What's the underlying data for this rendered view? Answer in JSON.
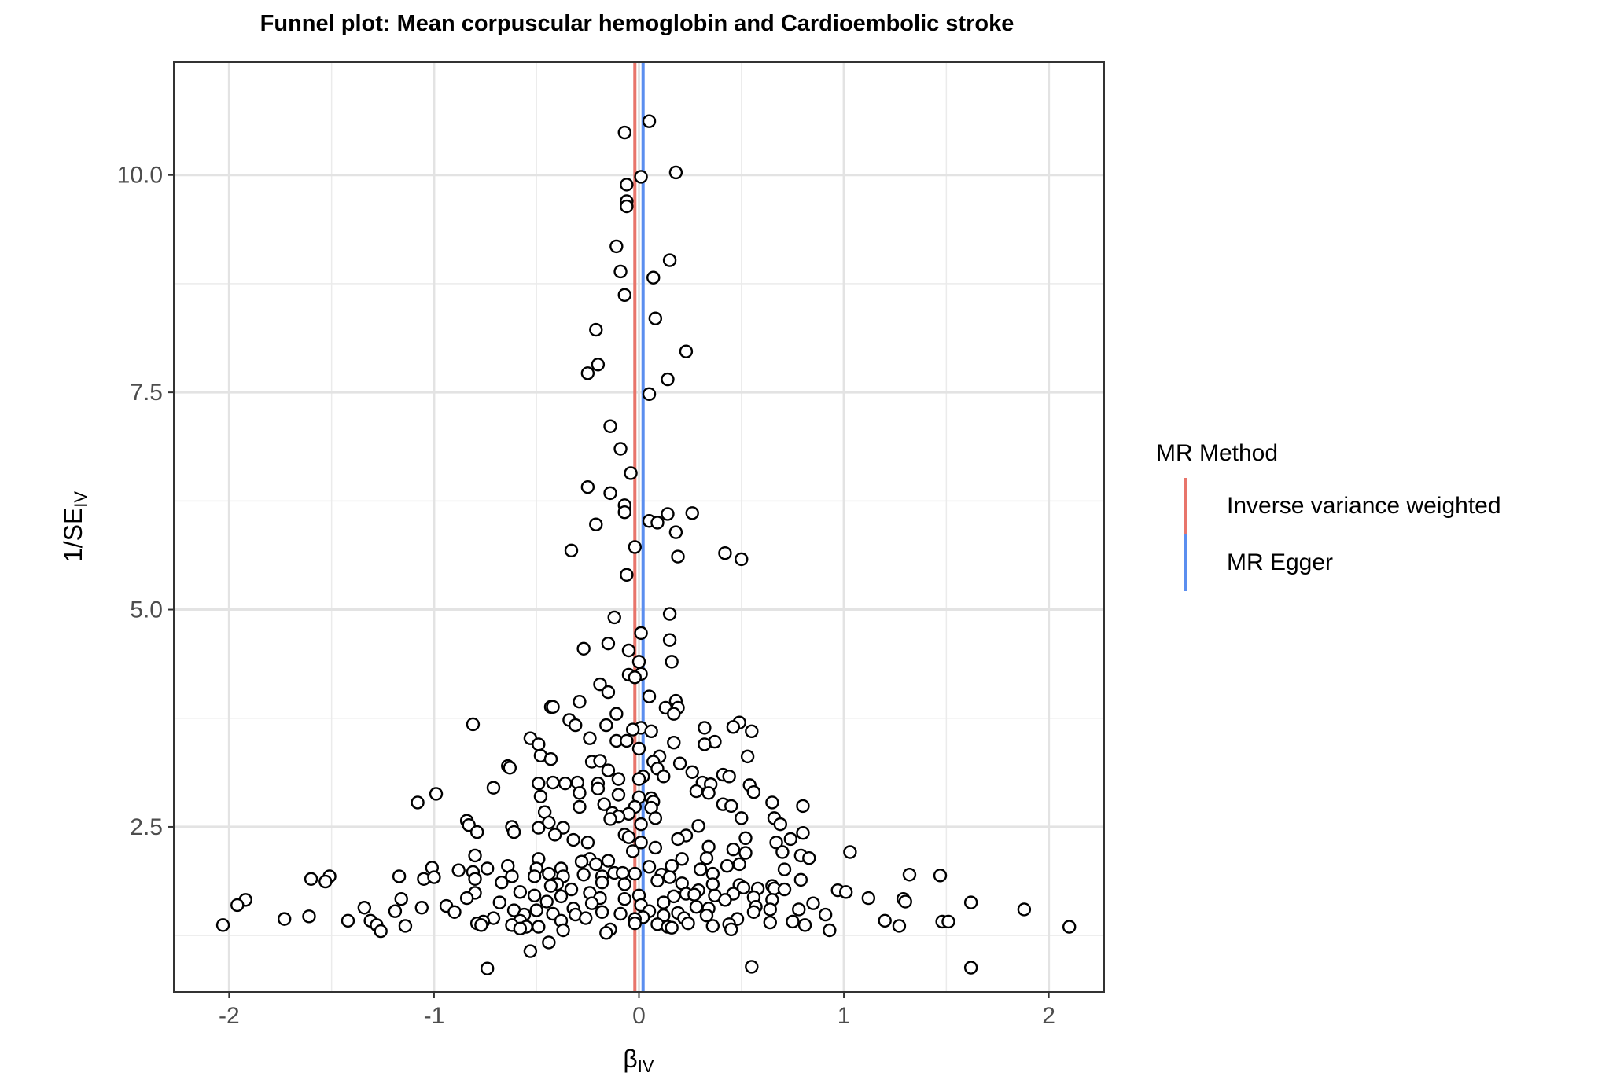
{
  "chart_data": {
    "type": "scatter",
    "title": "Funnel plot: Mean corpuscular hemoglobin and Cardioembolic stroke",
    "xlabel": "β",
    "xlabel_sub": "IV",
    "ylabel": "1/SE",
    "ylabel_sub": "IV",
    "xlim": [
      -2.27,
      2.27
    ],
    "ylim": [
      0.6,
      11.3
    ],
    "x_ticks": [
      -2,
      -1,
      0,
      1,
      2
    ],
    "x_tick_labels": [
      "-2",
      "-1",
      "0",
      "1",
      "2"
    ],
    "y_ticks": [
      2.5,
      5.0,
      7.5,
      10.0
    ],
    "y_tick_labels": [
      "2.5",
      "5.0",
      "7.5",
      "10.0"
    ],
    "grid": true,
    "legend_position": "right",
    "legend": {
      "title": "MR Method",
      "entries": [
        {
          "label": "Inverse variance weighted",
          "color": "#E8756B"
        },
        {
          "label": "MR Egger",
          "color": "#5B8EEF"
        }
      ]
    },
    "vlines": [
      {
        "name": "Inverse variance weighted",
        "x": -0.02,
        "color": "#E8756B"
      },
      {
        "name": "MR Egger",
        "x": 0.02,
        "color": "#5B8EEF"
      }
    ],
    "point_style": {
      "fill": "#ffffff",
      "stroke": "#000000"
    },
    "points": [
      [
        0.05,
        10.62
      ],
      [
        -0.07,
        10.49
      ],
      [
        0.18,
        10.03
      ],
      [
        0.01,
        9.98
      ],
      [
        -0.06,
        9.89
      ],
      [
        -0.06,
        9.7
      ],
      [
        -0.06,
        9.64
      ],
      [
        -0.11,
        9.18
      ],
      [
        0.15,
        9.02
      ],
      [
        -0.09,
        8.89
      ],
      [
        0.07,
        8.82
      ],
      [
        -0.07,
        8.62
      ],
      [
        0.08,
        8.35
      ],
      [
        -0.21,
        8.22
      ],
      [
        0.23,
        7.97
      ],
      [
        -0.2,
        7.82
      ],
      [
        -0.25,
        7.72
      ],
      [
        0.14,
        7.65
      ],
      [
        0.05,
        7.48
      ],
      [
        -0.14,
        7.11
      ],
      [
        -0.09,
        6.85
      ],
      [
        -0.04,
        6.57
      ],
      [
        -0.25,
        6.41
      ],
      [
        -0.14,
        6.34
      ],
      [
        -0.07,
        6.2
      ],
      [
        -0.07,
        6.12
      ],
      [
        0.26,
        6.11
      ],
      [
        0.14,
        6.1
      ],
      [
        0.05,
        6.02
      ],
      [
        0.09,
        6.0
      ],
      [
        -0.21,
        5.98
      ],
      [
        0.18,
        5.89
      ],
      [
        -0.02,
        5.72
      ],
      [
        -0.33,
        5.68
      ],
      [
        0.42,
        5.65
      ],
      [
        0.19,
        5.61
      ],
      [
        0.5,
        5.58
      ],
      [
        -0.06,
        5.4
      ],
      [
        0.15,
        4.95
      ],
      [
        -0.12,
        4.91
      ],
      [
        0.01,
        4.73
      ],
      [
        0.15,
        4.65
      ],
      [
        -0.15,
        4.61
      ],
      [
        -0.27,
        4.55
      ],
      [
        -0.05,
        4.53
      ],
      [
        0.0,
        4.4
      ],
      [
        0.16,
        4.4
      ],
      [
        -0.05,
        4.25
      ],
      [
        0.01,
        4.26
      ],
      [
        -0.02,
        4.22
      ],
      [
        -0.19,
        4.14
      ],
      [
        -0.15,
        4.05
      ],
      [
        0.05,
        4.0
      ],
      [
        -0.29,
        3.94
      ],
      [
        0.18,
        3.95
      ],
      [
        -0.43,
        3.88
      ],
      [
        -0.42,
        3.88
      ],
      [
        0.13,
        3.87
      ],
      [
        0.19,
        3.87
      ],
      [
        -0.11,
        3.8
      ],
      [
        0.17,
        3.8
      ],
      [
        -0.34,
        3.73
      ],
      [
        0.49,
        3.7
      ],
      [
        -0.81,
        3.68
      ],
      [
        -0.31,
        3.67
      ],
      [
        -0.16,
        3.67
      ],
      [
        0.46,
        3.65
      ],
      [
        0.01,
        3.64
      ],
      [
        -0.03,
        3.62
      ],
      [
        0.32,
        3.64
      ],
      [
        0.06,
        3.6
      ],
      [
        0.55,
        3.6
      ],
      [
        -0.53,
        3.52
      ],
      [
        -0.24,
        3.52
      ],
      [
        -0.11,
        3.49
      ],
      [
        -0.06,
        3.49
      ],
      [
        0.17,
        3.47
      ],
      [
        0.37,
        3.48
      ],
      [
        0.32,
        3.45
      ],
      [
        -0.49,
        3.45
      ],
      [
        0.0,
        3.4
      ],
      [
        0.1,
        3.31
      ],
      [
        -0.48,
        3.32
      ],
      [
        0.53,
        3.31
      ],
      [
        -0.43,
        3.28
      ],
      [
        -0.23,
        3.25
      ],
      [
        -0.19,
        3.26
      ],
      [
        0.07,
        3.25
      ],
      [
        0.2,
        3.23
      ],
      [
        -0.64,
        3.2
      ],
      [
        -0.63,
        3.18
      ],
      [
        0.09,
        3.17
      ],
      [
        -0.15,
        3.15
      ],
      [
        0.26,
        3.13
      ],
      [
        0.41,
        3.1
      ],
      [
        0.12,
        3.08
      ],
      [
        0.44,
        3.08
      ],
      [
        -0.1,
        3.05
      ],
      [
        0.02,
        3.08
      ],
      [
        0.0,
        3.05
      ],
      [
        -0.42,
        3.01
      ],
      [
        -0.49,
        3.0
      ],
      [
        -0.36,
        3.0
      ],
      [
        -0.2,
        3.0
      ],
      [
        -0.3,
        3.01
      ],
      [
        0.31,
        3.01
      ],
      [
        0.35,
        2.99
      ],
      [
        0.54,
        2.98
      ],
      [
        -0.71,
        2.95
      ],
      [
        -0.2,
        2.94
      ],
      [
        0.28,
        2.91
      ],
      [
        0.56,
        2.9
      ],
      [
        0.34,
        2.89
      ],
      [
        -0.99,
        2.88
      ],
      [
        -0.29,
        2.89
      ],
      [
        -0.1,
        2.87
      ],
      [
        -0.48,
        2.85
      ],
      [
        0.0,
        2.84
      ],
      [
        0.06,
        2.83
      ],
      [
        0.07,
        2.79
      ],
      [
        -1.08,
        2.78
      ],
      [
        0.65,
        2.78
      ],
      [
        0.41,
        2.76
      ],
      [
        -0.17,
        2.76
      ],
      [
        0.45,
        2.74
      ],
      [
        0.8,
        2.74
      ],
      [
        -0.29,
        2.73
      ],
      [
        -0.02,
        2.73
      ],
      [
        0.06,
        2.72
      ],
      [
        -0.46,
        2.67
      ],
      [
        -0.13,
        2.66
      ],
      [
        -0.05,
        2.65
      ],
      [
        -0.1,
        2.62
      ],
      [
        0.08,
        2.6
      ],
      [
        0.5,
        2.6
      ],
      [
        0.66,
        2.6
      ],
      [
        -0.84,
        2.57
      ],
      [
        -0.44,
        2.55
      ],
      [
        -0.14,
        2.59
      ],
      [
        0.01,
        2.53
      ],
      [
        0.69,
        2.53
      ],
      [
        0.29,
        2.51
      ],
      [
        -0.62,
        2.5
      ],
      [
        -0.49,
        2.49
      ],
      [
        -0.83,
        2.52
      ],
      [
        -0.37,
        2.49
      ],
      [
        -0.61,
        2.44
      ],
      [
        -0.79,
        2.44
      ],
      [
        -0.07,
        2.41
      ],
      [
        0.8,
        2.43
      ],
      [
        -0.41,
        2.41
      ],
      [
        -0.05,
        2.38
      ],
      [
        0.23,
        2.4
      ],
      [
        0.52,
        2.37
      ],
      [
        0.74,
        2.36
      ],
      [
        0.19,
        2.36
      ],
      [
        -0.32,
        2.35
      ],
      [
        0.67,
        2.32
      ],
      [
        0.01,
        2.32
      ],
      [
        -0.25,
        2.32
      ],
      [
        0.34,
        2.27
      ],
      [
        0.46,
        2.24
      ],
      [
        -0.03,
        2.22
      ],
      [
        0.08,
        2.26
      ],
      [
        0.7,
        2.21
      ],
      [
        1.03,
        2.21
      ],
      [
        0.52,
        2.2
      ],
      [
        -0.8,
        2.17
      ],
      [
        0.79,
        2.17
      ],
      [
        0.83,
        2.14
      ],
      [
        -0.49,
        2.13
      ],
      [
        -0.24,
        2.13
      ],
      [
        0.21,
        2.13
      ],
      [
        0.33,
        2.14
      ],
      [
        -0.15,
        2.11
      ],
      [
        -0.28,
        2.1
      ],
      [
        -0.21,
        2.07
      ],
      [
        0.49,
        2.07
      ],
      [
        0.43,
        2.05
      ],
      [
        -0.64,
        2.05
      ],
      [
        -0.38,
        2.02
      ],
      [
        -0.5,
        2.02
      ],
      [
        0.05,
        2.04
      ],
      [
        0.16,
        2.05
      ],
      [
        -1.01,
        2.03
      ],
      [
        -0.88,
        2.0
      ],
      [
        -0.74,
        2.02
      ],
      [
        0.71,
        2.01
      ],
      [
        -0.81,
        1.98
      ],
      [
        0.3,
        2.01
      ],
      [
        -0.12,
        1.97
      ],
      [
        -0.08,
        1.97
      ],
      [
        -0.44,
        1.96
      ],
      [
        0.36,
        1.96
      ],
      [
        -0.02,
        1.96
      ],
      [
        0.11,
        1.95
      ],
      [
        -0.62,
        1.93
      ],
      [
        -0.51,
        1.93
      ],
      [
        -0.18,
        1.93
      ],
      [
        -0.37,
        1.93
      ],
      [
        -0.27,
        1.95
      ],
      [
        1.32,
        1.95
      ],
      [
        1.47,
        1.94
      ],
      [
        -1.51,
        1.93
      ],
      [
        -1.17,
        1.93
      ],
      [
        -1.6,
        1.9
      ],
      [
        -1.05,
        1.9
      ],
      [
        -1.0,
        1.92
      ],
      [
        -0.8,
        1.9
      ],
      [
        0.15,
        1.92
      ],
      [
        0.79,
        1.89
      ],
      [
        0.09,
        1.88
      ],
      [
        -0.67,
        1.86
      ],
      [
        -1.53,
        1.87
      ],
      [
        -0.18,
        1.86
      ],
      [
        -0.07,
        1.84
      ],
      [
        0.21,
        1.85
      ],
      [
        0.36,
        1.84
      ],
      [
        -0.4,
        1.84
      ],
      [
        0.49,
        1.83
      ],
      [
        -0.43,
        1.82
      ],
      [
        0.65,
        1.82
      ],
      [
        0.51,
        1.8
      ],
      [
        0.66,
        1.79
      ],
      [
        0.58,
        1.79
      ],
      [
        0.71,
        1.78
      ],
      [
        -0.33,
        1.78
      ],
      [
        0.29,
        1.77
      ],
      [
        0.97,
        1.77
      ],
      [
        1.01,
        1.75
      ],
      [
        -0.58,
        1.75
      ],
      [
        -0.24,
        1.74
      ],
      [
        0.23,
        1.73
      ],
      [
        -0.8,
        1.74
      ],
      [
        0.46,
        1.73
      ],
      [
        0.27,
        1.72
      ],
      [
        0.0,
        1.71
      ],
      [
        0.37,
        1.71
      ],
      [
        -0.51,
        1.71
      ],
      [
        0.17,
        1.7
      ],
      [
        -0.38,
        1.7
      ],
      [
        0.56,
        1.69
      ],
      [
        -1.92,
        1.66
      ],
      [
        -0.84,
        1.68
      ],
      [
        -0.19,
        1.68
      ],
      [
        -0.07,
        1.67
      ],
      [
        1.12,
        1.68
      ],
      [
        1.29,
        1.67
      ],
      [
        0.65,
        1.66
      ],
      [
        -1.16,
        1.67
      ],
      [
        0.42,
        1.66
      ],
      [
        1.3,
        1.64
      ],
      [
        -0.45,
        1.64
      ],
      [
        0.12,
        1.63
      ],
      [
        1.62,
        1.63
      ],
      [
        -0.68,
        1.63
      ],
      [
        -0.23,
        1.62
      ],
      [
        0.85,
        1.62
      ],
      [
        -1.96,
        1.6
      ],
      [
        0.01,
        1.6
      ],
      [
        -0.94,
        1.59
      ],
      [
        0.28,
        1.58
      ],
      [
        -1.34,
        1.57
      ],
      [
        -1.06,
        1.57
      ],
      [
        0.57,
        1.58
      ],
      [
        -0.32,
        1.56
      ],
      [
        0.34,
        1.56
      ],
      [
        1.88,
        1.55
      ],
      [
        -0.61,
        1.54
      ],
      [
        0.64,
        1.55
      ],
      [
        -1.19,
        1.53
      ],
      [
        -0.9,
        1.52
      ],
      [
        -0.5,
        1.54
      ],
      [
        -0.18,
        1.52
      ],
      [
        0.05,
        1.53
      ],
      [
        0.78,
        1.55
      ],
      [
        0.19,
        1.51
      ],
      [
        0.91,
        1.49
      ],
      [
        0.56,
        1.52
      ],
      [
        -0.42,
        1.5
      ],
      [
        -0.56,
        1.49
      ],
      [
        -0.31,
        1.49
      ],
      [
        -0.09,
        1.5
      ],
      [
        0.33,
        1.48
      ],
      [
        0.12,
        1.48
      ],
      [
        -1.61,
        1.47
      ],
      [
        -1.73,
        1.44
      ],
      [
        -0.71,
        1.45
      ],
      [
        -0.26,
        1.45
      ],
      [
        0.02,
        1.46
      ],
      [
        0.22,
        1.45
      ],
      [
        -0.02,
        1.44
      ],
      [
        0.48,
        1.44
      ],
      [
        -1.42,
        1.42
      ],
      [
        -1.31,
        1.42
      ],
      [
        -0.76,
        1.41
      ],
      [
        -0.58,
        1.42
      ],
      [
        -0.38,
        1.42
      ],
      [
        1.2,
        1.42
      ],
      [
        1.48,
        1.41
      ],
      [
        0.75,
        1.41
      ],
      [
        0.64,
        1.4
      ],
      [
        -0.79,
        1.39
      ],
      [
        -0.02,
        1.39
      ],
      [
        0.24,
        1.39
      ],
      [
        1.51,
        1.41
      ],
      [
        0.44,
        1.38
      ],
      [
        0.09,
        1.38
      ],
      [
        -1.28,
        1.37
      ],
      [
        -2.03,
        1.37
      ],
      [
        -0.77,
        1.37
      ],
      [
        -0.62,
        1.37
      ],
      [
        -0.55,
        1.35
      ],
      [
        -0.49,
        1.35
      ],
      [
        0.36,
        1.36
      ],
      [
        0.14,
        1.35
      ],
      [
        0.81,
        1.37
      ],
      [
        1.27,
        1.36
      ],
      [
        2.1,
        1.35
      ],
      [
        -1.14,
        1.36
      ],
      [
        -0.58,
        1.33
      ],
      [
        -0.14,
        1.32
      ],
      [
        0.16,
        1.34
      ],
      [
        0.45,
        1.32
      ],
      [
        0.93,
        1.31
      ],
      [
        -0.37,
        1.31
      ],
      [
        -1.26,
        1.3
      ],
      [
        -0.16,
        1.28
      ],
      [
        -0.44,
        1.17
      ],
      [
        -0.53,
        1.07
      ],
      [
        -0.74,
        0.87
      ],
      [
        0.55,
        0.89
      ],
      [
        1.62,
        0.88
      ]
    ]
  }
}
